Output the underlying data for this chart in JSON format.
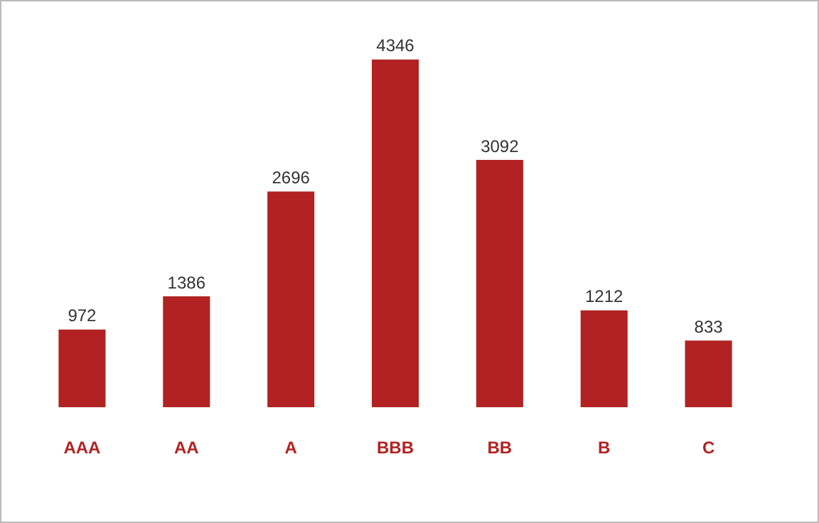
{
  "chart_data": {
    "type": "bar",
    "categories": [
      "AAA",
      "AA",
      "A",
      "BBB",
      "BB",
      "B",
      "C"
    ],
    "values": [
      972,
      1386,
      2696,
      4346,
      3092,
      1212,
      833
    ],
    "color": "#b22222",
    "data_labels": true,
    "legend": false
  }
}
